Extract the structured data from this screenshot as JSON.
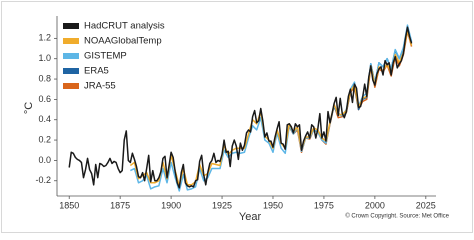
{
  "chart_data": {
    "type": "line",
    "x_label": "Year",
    "y_label": "°C",
    "credit": "© Crown Copyright. Source: Met Office",
    "xlim": [
      1844,
      2030
    ],
    "xticks": [
      1850,
      1875,
      1900,
      1925,
      1950,
      1975,
      2000,
      2025
    ],
    "ylim": [
      -0.35,
      1.42
    ],
    "yticks": [
      -0.2,
      {
        "value": 0,
        "label": "0.0"
      },
      0.2,
      0.4,
      0.6,
      0.8,
      {
        "value": 1,
        "label": "1.0"
      },
      1.2
    ],
    "legend": "upper left",
    "series": [
      {
        "name": "HadCRUT analysis",
        "color": "#1a1a1a",
        "x": [
          1850,
          1851,
          1852,
          1853,
          1854,
          1855,
          1856,
          1857,
          1858,
          1859,
          1860,
          1861,
          1862,
          1863,
          1864,
          1865,
          1866,
          1867,
          1868,
          1869,
          1870,
          1871,
          1872,
          1873,
          1874,
          1875,
          1876,
          1877,
          1878,
          1879,
          1880,
          1881,
          1882,
          1883,
          1884,
          1885,
          1886,
          1887,
          1888,
          1889,
          1890,
          1891,
          1892,
          1893,
          1894,
          1895,
          1896,
          1897,
          1898,
          1899,
          1900,
          1901,
          1902,
          1903,
          1904,
          1905,
          1906,
          1907,
          1908,
          1909,
          1910,
          1911,
          1912,
          1913,
          1914,
          1915,
          1916,
          1917,
          1918,
          1919,
          1920,
          1921,
          1922,
          1923,
          1924,
          1925,
          1926,
          1927,
          1928,
          1929,
          1930,
          1931,
          1932,
          1933,
          1934,
          1935,
          1936,
          1937,
          1938,
          1939,
          1940,
          1941,
          1942,
          1943,
          1944,
          1945,
          1946,
          1947,
          1948,
          1949,
          1950,
          1951,
          1952,
          1953,
          1954,
          1955,
          1956,
          1957,
          1958,
          1959,
          1960,
          1961,
          1962,
          1963,
          1964,
          1965,
          1966,
          1967,
          1968,
          1969,
          1970,
          1971,
          1972,
          1973,
          1974,
          1975,
          1976,
          1977,
          1978,
          1979,
          1980,
          1981,
          1982,
          1983,
          1984,
          1985,
          1986,
          1987,
          1988,
          1989,
          1990,
          1991,
          1992,
          1993,
          1994,
          1995,
          1996,
          1997,
          1998,
          1999,
          2000,
          2001,
          2002,
          2003,
          2004,
          2005,
          2006,
          2007,
          2008,
          2009,
          2010,
          2011,
          2012,
          2013,
          2014,
          2015,
          2016,
          2017,
          2018
        ],
        "values": [
          -0.07,
          0.08,
          0.07,
          0.03,
          0.01,
          0.0,
          -0.02,
          -0.17,
          -0.09,
          0.02,
          -0.09,
          -0.13,
          -0.24,
          -0.04,
          -0.17,
          -0.03,
          -0.04,
          -0.06,
          -0.05,
          -0.02,
          0.02,
          -0.03,
          -0.01,
          -0.02,
          -0.08,
          -0.12,
          -0.1,
          0.2,
          0.29,
          0.0,
          -0.02,
          0.07,
          0.01,
          -0.06,
          -0.16,
          -0.17,
          -0.12,
          -0.2,
          -0.08,
          0.05,
          -0.21,
          -0.1,
          -0.2,
          -0.2,
          -0.17,
          -0.11,
          0.02,
          0.04,
          -0.17,
          -0.05,
          0.08,
          0.03,
          -0.11,
          -0.22,
          -0.27,
          -0.12,
          -0.04,
          -0.22,
          -0.25,
          -0.26,
          -0.25,
          -0.26,
          -0.2,
          -0.19,
          -0.01,
          0.05,
          -0.14,
          -0.24,
          -0.12,
          -0.03,
          0.0,
          0.07,
          -0.02,
          0.0,
          -0.01,
          0.06,
          0.2,
          0.08,
          0.09,
          -0.06,
          0.14,
          0.2,
          0.14,
          0.01,
          0.17,
          0.1,
          0.15,
          0.27,
          0.3,
          0.28,
          0.43,
          0.49,
          0.37,
          0.39,
          0.51,
          0.39,
          0.23,
          0.27,
          0.19,
          0.19,
          0.13,
          0.23,
          0.31,
          0.38,
          0.17,
          0.16,
          0.11,
          0.35,
          0.36,
          0.33,
          0.27,
          0.36,
          0.33,
          0.35,
          0.1,
          0.19,
          0.24,
          0.28,
          0.22,
          0.35,
          0.33,
          0.22,
          0.31,
          0.46,
          0.22,
          0.28,
          0.19,
          0.48,
          0.37,
          0.46,
          0.56,
          0.62,
          0.44,
          0.61,
          0.46,
          0.42,
          0.48,
          0.63,
          0.7,
          0.57,
          0.75,
          0.71,
          0.52,
          0.53,
          0.62,
          0.75,
          0.63,
          0.82,
          0.93,
          0.79,
          0.74,
          0.85,
          0.9,
          0.92,
          0.84,
          0.98,
          0.94,
          0.96,
          0.84,
          0.96,
          1.02,
          0.91,
          0.95,
          0.98,
          1.05,
          1.2,
          1.31,
          1.22,
          1.15
        ]
      },
      {
        "name": "NOAAGlobalTemp",
        "color": "#f0ac2c",
        "x": [
          1880,
          1882,
          1884,
          1886,
          1888,
          1890,
          1892,
          1894,
          1896,
          1898,
          1900,
          1902,
          1904,
          1906,
          1908,
          1910,
          1912,
          1914,
          1916,
          1918,
          1920,
          1922,
          1924,
          1926,
          1928,
          1930,
          1932,
          1934,
          1936,
          1938,
          1940,
          1942,
          1944,
          1946,
          1948,
          1950,
          1952,
          1954,
          1956,
          1958,
          1960,
          1962,
          1964,
          1966,
          1968,
          1970,
          1972,
          1974,
          1976,
          1978,
          1980,
          1982,
          1984,
          1986,
          1988,
          1990,
          1992,
          1994,
          1996,
          1998,
          2000,
          2002,
          2004,
          2006,
          2008,
          2010,
          2012,
          2014,
          2016,
          2018
        ],
        "values": [
          -0.05,
          -0.02,
          -0.18,
          -0.15,
          -0.12,
          -0.22,
          -0.22,
          -0.2,
          -0.02,
          -0.18,
          0.05,
          -0.1,
          -0.25,
          -0.08,
          -0.24,
          -0.24,
          -0.21,
          -0.04,
          -0.15,
          -0.13,
          -0.03,
          -0.04,
          -0.05,
          0.15,
          0.06,
          0.1,
          0.12,
          0.12,
          0.12,
          0.26,
          0.4,
          0.36,
          0.48,
          0.24,
          0.2,
          0.12,
          0.3,
          0.17,
          0.12,
          0.36,
          0.28,
          0.33,
          0.11,
          0.23,
          0.23,
          0.32,
          0.3,
          0.22,
          0.19,
          0.38,
          0.55,
          0.45,
          0.45,
          0.49,
          0.68,
          0.74,
          0.52,
          0.61,
          0.63,
          0.93,
          0.74,
          0.92,
          0.88,
          0.95,
          0.86,
          1.04,
          0.96,
          1.06,
          1.28,
          1.13
        ]
      },
      {
        "name": "GISTEMP",
        "color": "#5db6e6",
        "x": [
          1880,
          1882,
          1884,
          1886,
          1888,
          1890,
          1892,
          1894,
          1896,
          1898,
          1900,
          1902,
          1904,
          1906,
          1908,
          1910,
          1912,
          1914,
          1916,
          1918,
          1920,
          1922,
          1924,
          1926,
          1928,
          1930,
          1932,
          1934,
          1936,
          1938,
          1940,
          1942,
          1944,
          1946,
          1948,
          1950,
          1952,
          1954,
          1956,
          1958,
          1960,
          1962,
          1964,
          1966,
          1968,
          1970,
          1972,
          1974,
          1976,
          1978,
          1980,
          1982,
          1984,
          1986,
          1988,
          1990,
          1992,
          1994,
          1996,
          1998,
          2000,
          2002,
          2004,
          2006,
          2008,
          2010,
          2012,
          2014,
          2016,
          2018
        ],
        "values": [
          -0.1,
          -0.08,
          -0.22,
          -0.2,
          -0.15,
          -0.28,
          -0.26,
          -0.25,
          -0.08,
          -0.22,
          -0.02,
          -0.17,
          -0.3,
          -0.14,
          -0.29,
          -0.28,
          -0.26,
          -0.08,
          -0.2,
          -0.17,
          -0.08,
          -0.08,
          -0.08,
          0.1,
          0.03,
          0.07,
          0.08,
          0.07,
          0.08,
          0.22,
          0.34,
          0.3,
          0.42,
          0.2,
          0.17,
          0.08,
          0.27,
          0.12,
          0.07,
          0.34,
          0.26,
          0.32,
          0.09,
          0.22,
          0.22,
          0.3,
          0.28,
          0.2,
          0.17,
          0.37,
          0.54,
          0.45,
          0.44,
          0.5,
          0.7,
          0.77,
          0.53,
          0.63,
          0.66,
          0.95,
          0.76,
          0.96,
          0.92,
          1.0,
          0.9,
          1.09,
          1.0,
          1.11,
          1.33,
          1.17
        ]
      },
      {
        "name": "ERA5",
        "color": "#1f64a3",
        "x": [
          1980,
          1982,
          1984,
          1986,
          1988,
          1990,
          1992,
          1994,
          1996,
          1998,
          2000,
          2002,
          2004,
          2006,
          2008,
          2010,
          2012,
          2014,
          2016,
          2018
        ],
        "values": [
          0.52,
          0.46,
          0.44,
          0.48,
          0.68,
          0.74,
          0.5,
          0.6,
          0.62,
          0.95,
          0.76,
          0.96,
          0.92,
          1.0,
          0.9,
          1.08,
          1.0,
          1.1,
          1.3,
          1.16
        ]
      },
      {
        "name": "JRA-55",
        "color": "#d9651b",
        "x": [
          1958,
          1960,
          1962,
          1964,
          1966,
          1968,
          1970,
          1972,
          1974,
          1976,
          1978,
          1980,
          1982,
          1984,
          1986,
          1988,
          1990,
          1992,
          1994,
          1996,
          1998,
          2000,
          2002,
          2004,
          2006,
          2008,
          2010,
          2012,
          2014,
          2016,
          2018
        ],
        "values": [
          0.33,
          0.26,
          0.3,
          0.08,
          0.22,
          0.21,
          0.3,
          0.28,
          0.2,
          0.16,
          0.36,
          0.54,
          0.42,
          0.43,
          0.47,
          0.67,
          0.72,
          0.5,
          0.58,
          0.6,
          0.92,
          0.72,
          0.9,
          0.87,
          0.94,
          0.83,
          1.02,
          0.93,
          1.04,
          1.27,
          1.12
        ]
      }
    ]
  }
}
